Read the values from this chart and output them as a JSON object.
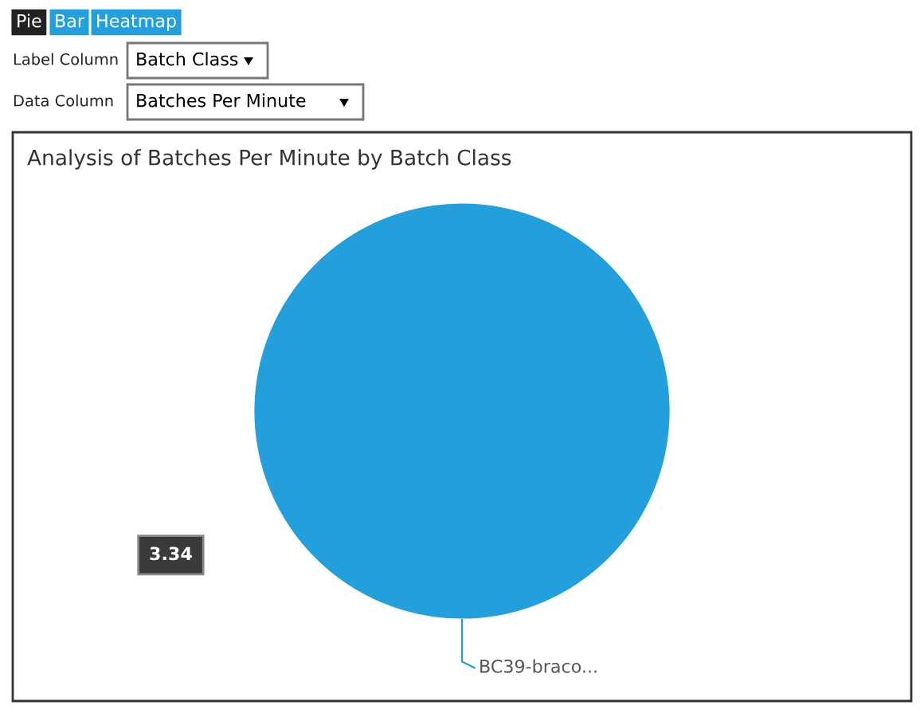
{
  "chart_data": {
    "type": "pie",
    "title": "Analysis of Batches Per Minute by Batch Class",
    "categories": [
      "BC39-braco..."
    ],
    "values": [
      3.34
    ],
    "data_labels": true,
    "colors": [
      "#239fdb"
    ],
    "annotations": [
      "Pie",
      "Bar",
      "Heatmap",
      "Label Column",
      "Batch Class",
      "Data Column",
      "Batches Per Minute"
    ]
  }
}
